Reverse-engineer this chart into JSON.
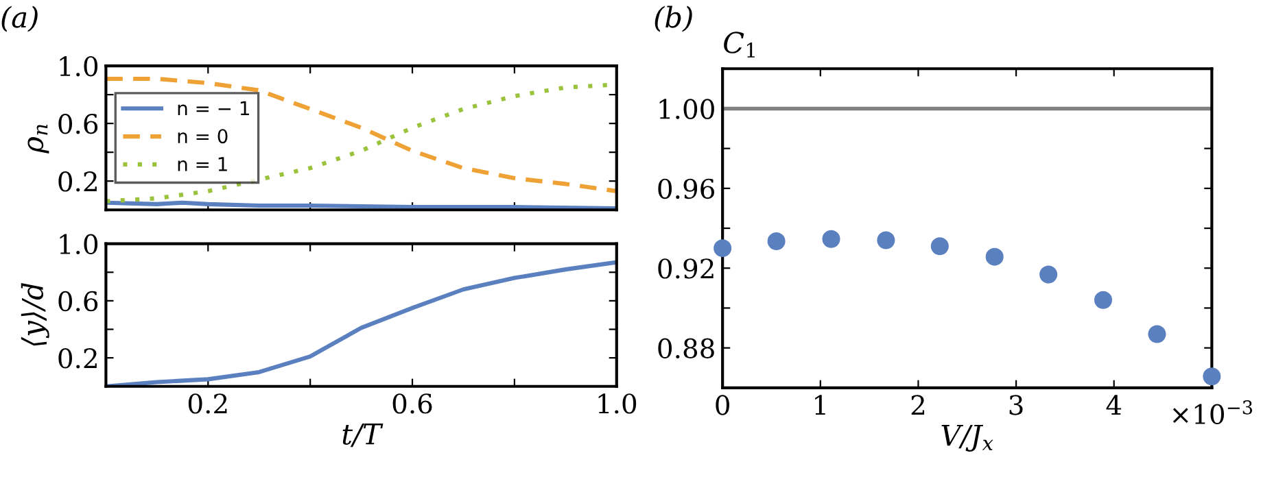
{
  "chart_data": [
    {
      "type": "line",
      "ylabel": "ρ$_{n}$",
      "annotations": [
        "(a)"
      ],
      "x": [
        0,
        0.1,
        0.2,
        0.3,
        0.4,
        0.5,
        0.55,
        0.6,
        0.7,
        0.8,
        0.9,
        1.0
      ],
      "series": [
        {
          "name": "n = − 1",
          "color": "#5b80c0",
          "line_style": "solid",
          "x": [
            0,
            0.1,
            0.15,
            0.2,
            0.3,
            0.4,
            0.6,
            0.8,
            1.0
          ],
          "values": [
            0.05,
            0.04,
            0.05,
            0.04,
            0.03,
            0.03,
            0.02,
            0.02,
            0.01
          ]
        },
        {
          "name": "n = 0",
          "color": "#eea236",
          "line_style": "dashed",
          "values": [
            0.91,
            0.91,
            0.88,
            0.83,
            0.7,
            0.57,
            0.49,
            0.41,
            0.29,
            0.22,
            0.18,
            0.13
          ]
        },
        {
          "name": "n = 1",
          "color": "#9bc23d",
          "line_style": "dotted",
          "values": [
            0.06,
            0.08,
            0.13,
            0.21,
            0.29,
            0.41,
            0.49,
            0.57,
            0.7,
            0.79,
            0.85,
            0.87
          ]
        }
      ],
      "xlim": [
        0,
        1.0
      ],
      "ylim": [
        0,
        1.0
      ],
      "xticks": [
        {
          "value": 0.2,
          "label": null
        },
        {
          "value": 0.4,
          "label": null
        },
        {
          "value": 0.6,
          "label": null
        },
        {
          "value": 0.8,
          "label": null
        },
        {
          "value": 1.0,
          "label": null
        }
      ],
      "yticks": [
        0.2,
        {
          "value": 0.4,
          "label": null
        },
        0.6,
        {
          "value": 0.8,
          "label": null
        },
        {
          "value": 1.0,
          "label": "1.0"
        }
      ],
      "tick_labels": "y",
      "legend": "center left",
      "grid": false,
      "marker": "none"
    },
    {
      "type": "line",
      "xlabel": "t/T",
      "ylabel": "⟨y⟩/d",
      "x": [
        0,
        0.1,
        0.2,
        0.3,
        0.4,
        0.5,
        0.6,
        0.7,
        0.8,
        0.9,
        1.0
      ],
      "series": [
        {
          "color": "#5b80c0",
          "line_style": "solid",
          "values": [
            0.0,
            0.03,
            0.05,
            0.1,
            0.21,
            0.41,
            0.55,
            0.68,
            0.76,
            0.82,
            0.87
          ]
        }
      ],
      "xlim": [
        0,
        1.0
      ],
      "ylim": [
        0,
        1.0
      ],
      "xticks": [
        0.2,
        {
          "value": 0.4,
          "label": null
        },
        0.6,
        {
          "value": 0.8,
          "label": null
        },
        {
          "value": 1.0,
          "label": "1.0"
        }
      ],
      "yticks": [
        0.2,
        {
          "value": 0.4,
          "label": null
        },
        0.6,
        {
          "value": 0.8,
          "label": null
        },
        {
          "value": 1.0,
          "label": "1.0"
        }
      ],
      "grid": false,
      "marker": "none"
    },
    {
      "type": "scatter",
      "xlabel": "V/J$_{x}$",
      "ylabel": "C$_{1}$",
      "annotations": [
        "(b)",
        "×10$^{−3}$"
      ],
      "x": [
        0,
        0.55,
        1.11,
        1.67,
        2.22,
        2.78,
        3.33,
        3.89,
        4.44,
        5.0
      ],
      "series": [
        {
          "color": "#5b80c0",
          "values": [
            0.93,
            0.9335,
            0.9346,
            0.934,
            0.931,
            0.9257,
            0.9168,
            0.904,
            0.8869,
            0.8657
          ]
        }
      ],
      "ref_lines": [
        {
          "axis": "y",
          "value": 1.0,
          "color": "#808080"
        }
      ],
      "xlim": [
        0,
        5.0
      ],
      "ylim": [
        0.86,
        1.02
      ],
      "xticks": [
        0,
        1,
        2,
        3,
        4
      ],
      "yticks": [
        0.88,
        {
          "value": 0.9,
          "label": null
        },
        0.92,
        {
          "value": 0.94,
          "label": null
        },
        0.96,
        {
          "value": 0.98,
          "label": null
        },
        "1.00"
      ],
      "grid": false,
      "marker": "circle"
    }
  ]
}
